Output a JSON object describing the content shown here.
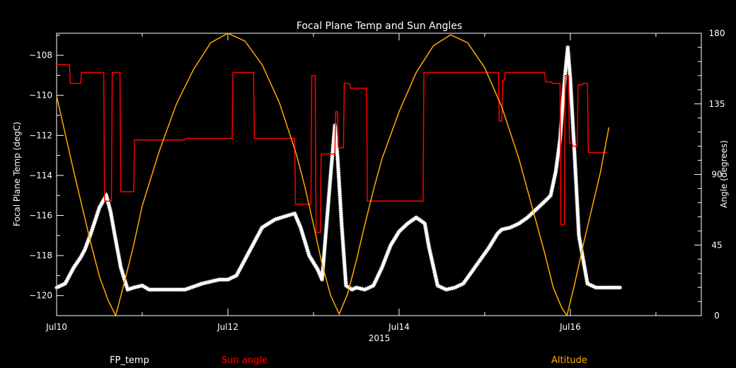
{
  "chart_data": {
    "type": "line",
    "title": "Focal Plane Temp and Sun Angles",
    "xlabel": "2015",
    "ylabel_left": "Focal Plane Temp (degC)",
    "ylabel_right": "Angle (degrees)",
    "xlim": [
      10,
      17.53
    ],
    "ylim_left": [
      -121,
      -106.9
    ],
    "ylim_right": [
      0,
      180
    ],
    "x_ticks": [
      {
        "value": 10,
        "label": "Jul10"
      },
      {
        "value": 12,
        "label": "Jul12"
      },
      {
        "value": 14,
        "label": "Jul14"
      },
      {
        "value": 16,
        "label": "Jul16"
      }
    ],
    "y_ticks_left": [
      -108,
      -110,
      -112,
      -114,
      -116,
      -118,
      -120
    ],
    "y_ticks_right": [
      0,
      45,
      90,
      135,
      180
    ],
    "series": [
      {
        "name": "FP_temp",
        "axis": "left",
        "color": "#ffffff",
        "marker": "star",
        "x": [
          10.0,
          10.1,
          10.2,
          10.28,
          10.33,
          10.4,
          10.5,
          10.58,
          10.63,
          10.68,
          10.75,
          10.83,
          10.9,
          11.0,
          11.08,
          11.15,
          11.3,
          11.5,
          11.7,
          11.9,
          12.0,
          12.1,
          12.25,
          12.4,
          12.55,
          12.7,
          12.78,
          12.85,
          12.95,
          13.05,
          13.1,
          13.2,
          13.25,
          13.28,
          13.33,
          13.38,
          13.45,
          13.5,
          13.6,
          13.7,
          13.8,
          13.9,
          14.0,
          14.1,
          14.2,
          14.3,
          14.35,
          14.45,
          14.55,
          14.65,
          14.75,
          14.85,
          14.95,
          15.05,
          15.15,
          15.2,
          15.3,
          15.4,
          15.5,
          15.6,
          15.7,
          15.77,
          15.83,
          15.88,
          15.91,
          15.94,
          15.97,
          16.0,
          16.05,
          16.1,
          16.2,
          16.3,
          16.5,
          16.6
        ],
        "values": [
          -119.6,
          -119.4,
          -118.6,
          -118.1,
          -117.7,
          -116.9,
          -115.6,
          -115.0,
          -115.8,
          -117.0,
          -118.6,
          -119.7,
          -119.6,
          -119.5,
          -119.7,
          -119.7,
          -119.7,
          -119.7,
          -119.4,
          -119.2,
          -119.2,
          -119.0,
          -117.8,
          -116.6,
          -116.2,
          -116.0,
          -115.9,
          -116.6,
          -118.0,
          -118.7,
          -119.2,
          -114.0,
          -111.5,
          -113.0,
          -116.5,
          -119.5,
          -119.7,
          -119.6,
          -119.7,
          -119.5,
          -118.6,
          -117.5,
          -116.8,
          -116.4,
          -116.1,
          -116.4,
          -117.6,
          -119.5,
          -119.7,
          -119.6,
          -119.4,
          -118.8,
          -118.2,
          -117.6,
          -116.9,
          -116.7,
          -116.6,
          -116.4,
          -116.1,
          -115.7,
          -115.3,
          -115.0,
          -113.8,
          -112.2,
          -110.5,
          -108.9,
          -107.6,
          -109.2,
          -113.0,
          -117.0,
          -119.4,
          -119.6,
          -119.6,
          -119.6
        ]
      },
      {
        "name": "Sun angle",
        "axis": "right",
        "color": "#ff0000",
        "marker": "none",
        "x": [
          10.0,
          10.15,
          10.16,
          10.28,
          10.29,
          10.55,
          10.56,
          10.64,
          10.65,
          10.74,
          10.75,
          10.9,
          10.91,
          11.5,
          11.51,
          12.05,
          12.06,
          12.3,
          12.31,
          12.78,
          12.79,
          12.97,
          12.98,
          13.02,
          13.03,
          13.08,
          13.09,
          13.25,
          13.26,
          13.28,
          13.29,
          13.35,
          13.36,
          13.42,
          13.43,
          13.62,
          13.63,
          14.28,
          14.29,
          15.16,
          15.17,
          15.2,
          15.21,
          15.23,
          15.24,
          15.7,
          15.71,
          15.78,
          15.79,
          15.88,
          15.89,
          15.93,
          15.94,
          15.98,
          15.99,
          16.02,
          16.03,
          16.08,
          16.09,
          16.14,
          16.15,
          16.2,
          16.21,
          16.43
        ],
        "values": [
          160,
          160,
          148,
          148,
          155,
          155,
          73,
          73,
          155,
          155,
          79,
          79,
          112,
          112,
          113,
          113,
          155,
          155,
          113,
          113,
          71,
          71,
          153,
          153,
          53,
          53,
          103,
          103,
          130,
          130,
          107,
          107,
          148,
          148,
          145,
          145,
          73,
          73,
          155,
          155,
          124,
          124,
          150,
          150,
          155,
          155,
          149,
          149,
          148,
          148,
          58,
          58,
          153,
          153,
          110,
          110,
          108,
          108,
          147,
          147,
          148,
          148,
          104,
          104
        ]
      },
      {
        "name": "Altitude",
        "axis": "right",
        "color": "#ffaa00",
        "marker": "none",
        "x": [
          10.0,
          10.1,
          10.2,
          10.3,
          10.4,
          10.5,
          10.6,
          10.69,
          10.8,
          10.9,
          11.0,
          11.2,
          11.4,
          11.6,
          11.8,
          12.0,
          12.2,
          12.4,
          12.6,
          12.8,
          12.9,
          13.0,
          13.1,
          13.2,
          13.3,
          13.4,
          13.5,
          13.6,
          13.7,
          13.8,
          14.0,
          14.2,
          14.4,
          14.6,
          14.8,
          15.0,
          15.2,
          15.4,
          15.6,
          15.7,
          15.8,
          15.9,
          15.96,
          16.05,
          16.15,
          16.25,
          16.35,
          16.45
        ],
        "values": [
          140,
          116,
          92,
          69,
          46,
          25,
          10,
          0,
          23,
          45,
          70,
          105,
          135,
          157,
          174,
          180,
          175,
          160,
          136,
          103,
          82,
          58,
          33,
          13,
          1,
          14,
          35,
          58,
          80,
          100,
          130,
          155,
          172,
          179,
          174,
          158,
          133,
          100,
          60,
          40,
          18,
          5,
          0,
          20,
          45,
          68,
          91,
          120
        ]
      }
    ]
  },
  "legend": {
    "fp_temp": "FP_temp",
    "sun_angle": "Sun angle",
    "altitude": "Altitude"
  },
  "colors": {
    "background": "#000000",
    "axes": "#ffffff",
    "fp_temp": "#ffffff",
    "sun_angle": "#ff0000",
    "altitude": "#ffaa00"
  }
}
